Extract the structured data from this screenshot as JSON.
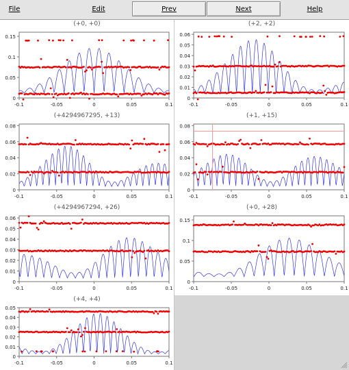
{
  "menu": {
    "file": "File",
    "edit": "Edit",
    "prev": "Prev",
    "next": "Next",
    "help": "Help"
  },
  "colors": {
    "points": "#ee0000",
    "curve": "#3333ee",
    "cursor": "#ff9999"
  },
  "chart_data": [
    {
      "id": "p1",
      "type": "line",
      "title": "(+0, +0)",
      "xlim": [
        -0.1,
        0.1
      ],
      "ylim": [
        0,
        0.16
      ],
      "yticks": [
        "0",
        "0.05",
        "0.1",
        "0.15"
      ],
      "ytick_values": [
        0,
        0.05,
        0.1,
        0.15
      ],
      "xticks": [
        "-0.1",
        "-0.05",
        "0",
        "0.05",
        "0.1"
      ],
      "series": [
        {
          "kind": "curve",
          "peak": 0.11,
          "freq": 75,
          "base": 0.03
        },
        {
          "kind": "points",
          "levels": [
            0.075,
            0.01,
            0.14
          ]
        }
      ]
    },
    {
      "id": "p2",
      "type": "line",
      "title": "(+2, +2)",
      "xlim": [
        -0.1,
        0.1
      ],
      "ylim": [
        0,
        0.062
      ],
      "yticks": [
        "0",
        "0.01",
        "0.02",
        "0.03",
        "0.04",
        "0.05",
        "0.06"
      ],
      "ytick_values": [
        0,
        0.01,
        0.02,
        0.03,
        0.04,
        0.05,
        0.06
      ],
      "xticks": [
        "-0.1",
        "-0.05",
        "0",
        "0.05",
        "0.1"
      ],
      "series": [
        {
          "kind": "curve",
          "peak": 0.055,
          "freq": 95,
          "base": 0.01
        },
        {
          "kind": "points",
          "levels": [
            0.03,
            0.005,
            0.058
          ]
        }
      ]
    },
    {
      "id": "p3",
      "type": "line",
      "title": "(+4294967295, +13)",
      "xlim": [
        -0.1,
        0.1
      ],
      "ylim": [
        0,
        0.082
      ],
      "yticks": [
        "0",
        "0.02",
        "0.04",
        "0.06",
        "0.08"
      ],
      "ytick_values": [
        0,
        0.02,
        0.04,
        0.06,
        0.08
      ],
      "xticks": [
        "-0.1",
        "-0.05",
        "0",
        "0.05",
        "0.1"
      ],
      "series": [
        {
          "kind": "curve",
          "peak": 0.062,
          "freq": 120,
          "base": 0.01
        },
        {
          "kind": "points",
          "levels": [
            0.057,
            0.022
          ]
        }
      ]
    },
    {
      "id": "p4",
      "type": "line",
      "title": "(+1, +15)",
      "xlim": [
        -0.1,
        0.1
      ],
      "ylim": [
        0,
        0.082
      ],
      "yticks": [
        "0",
        "0.02",
        "0.04",
        "0.06",
        "0.08"
      ],
      "ytick_values": [
        0,
        0.02,
        0.04,
        0.06,
        0.08
      ],
      "xticks": [
        "-0.1",
        "-0.05",
        "0",
        "0.05",
        "0.1"
      ],
      "cursor": {
        "x": -0.075,
        "y": 0.073
      },
      "series": [
        {
          "kind": "curve",
          "peak": 0.062,
          "freq": 120,
          "base": 0.01
        },
        {
          "kind": "points",
          "levels": [
            0.057,
            0.022
          ]
        }
      ]
    },
    {
      "id": "p5",
      "type": "line",
      "title": "(+4294967294, +26)",
      "xlim": [
        -0.1,
        0.1
      ],
      "ylim": [
        0,
        0.062
      ],
      "yticks": [
        "0",
        "0.01",
        "0.02",
        "0.03",
        "0.04",
        "0.05",
        "0.06"
      ],
      "ytick_values": [
        0,
        0.01,
        0.02,
        0.03,
        0.04,
        0.05,
        0.06
      ],
      "xticks": [
        "-0.1",
        "-0.05",
        "0",
        "0.05",
        "0.1"
      ],
      "series": [
        {
          "kind": "curve",
          "peak": 0.055,
          "freq": 95,
          "base": 0.008
        },
        {
          "kind": "points",
          "levels": [
            0.055,
            0.029
          ]
        }
      ]
    },
    {
      "id": "p6",
      "type": "line",
      "title": "(+0, +28)",
      "xlim": [
        -0.1,
        0.1
      ],
      "ylim": [
        0,
        0.16
      ],
      "yticks": [
        "0",
        "0.05",
        "0.1",
        "0.15"
      ],
      "ytick_values": [
        0,
        0.05,
        0.1,
        0.15
      ],
      "xticks": [
        "-0.1",
        "-0.05",
        "0",
        "0.05",
        "0.1"
      ],
      "series": [
        {
          "kind": "curve",
          "peak": 0.11,
          "freq": 75,
          "base": 0.03
        },
        {
          "kind": "points",
          "levels": [
            0.138,
            0.073
          ]
        }
      ]
    },
    {
      "id": "p7",
      "type": "line",
      "title": "(+4, +4)",
      "xlim": [
        -0.1,
        0.1
      ],
      "ylim": [
        0,
        0.05
      ],
      "yticks": [
        "0",
        "0.01",
        "0.02",
        "0.03",
        "0.04",
        "0.05"
      ],
      "ytick_values": [
        0,
        0.01,
        0.02,
        0.03,
        0.04,
        0.05
      ],
      "xticks": [
        "-0.1",
        "-0.05",
        "0",
        "0.05",
        "0.1"
      ],
      "series": [
        {
          "kind": "curve",
          "peak": 0.042,
          "freq": 110,
          "base": 0.006
        },
        {
          "kind": "points",
          "levels": [
            0.046,
            0.025,
            0.005
          ]
        }
      ]
    }
  ]
}
